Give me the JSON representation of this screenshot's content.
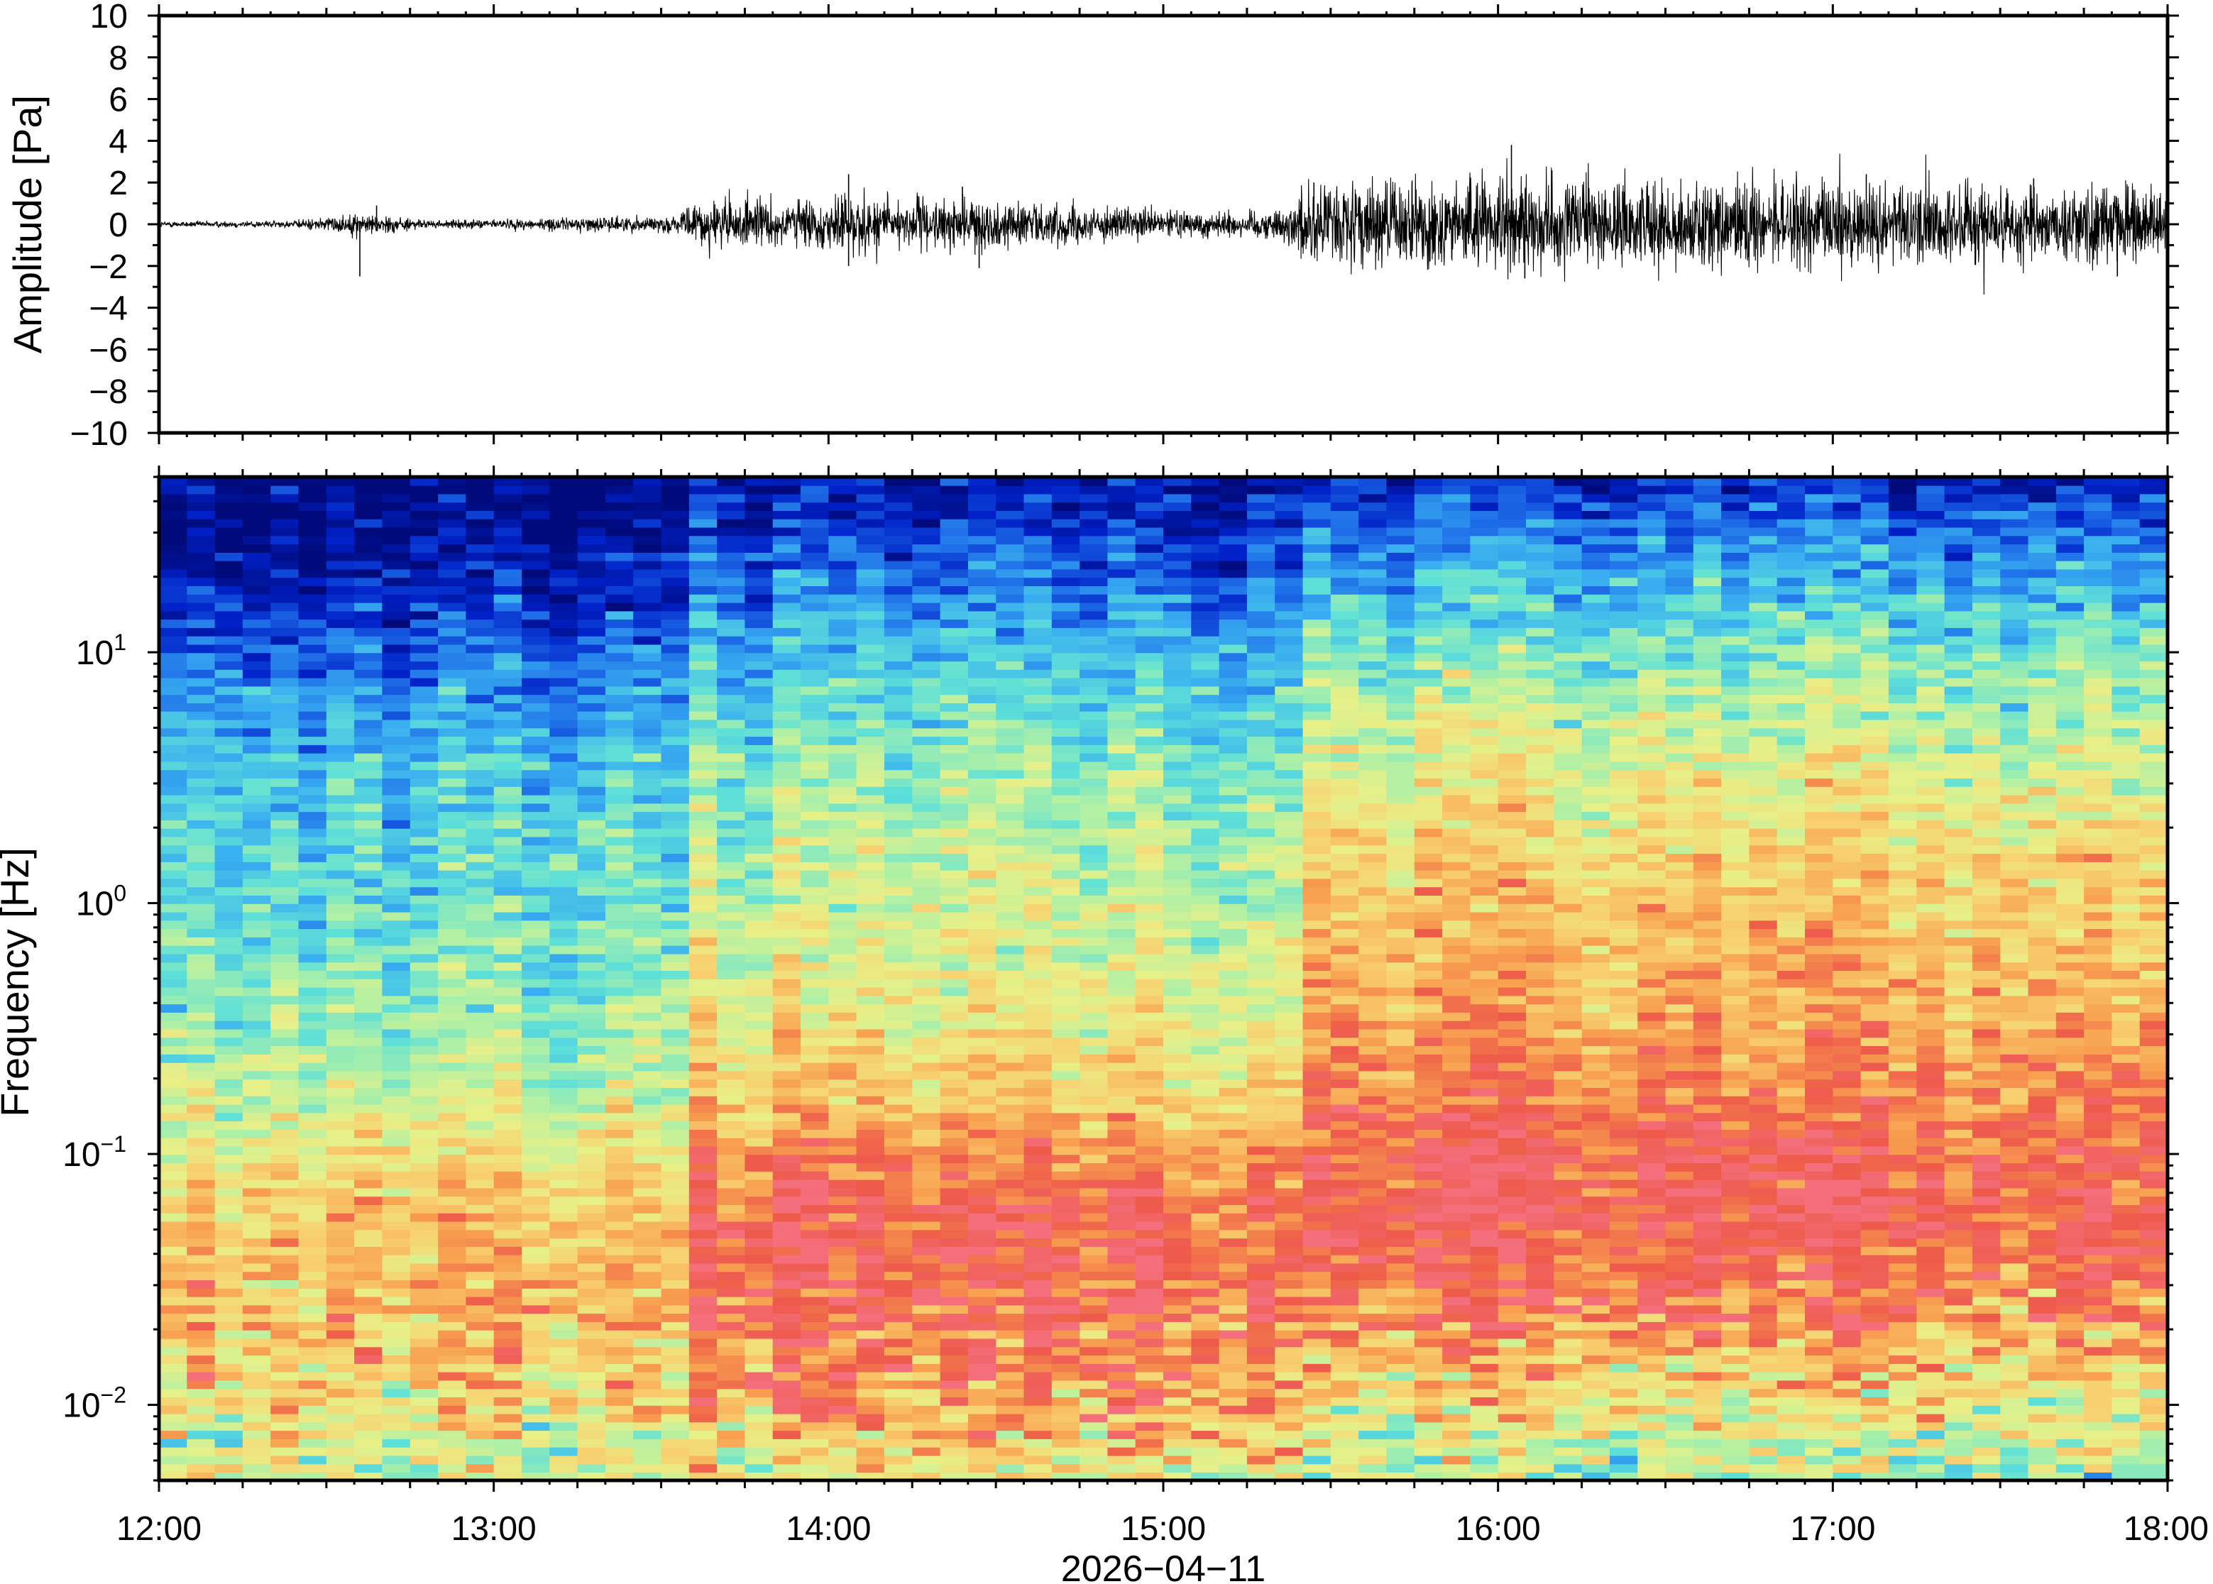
{
  "chart_data": [
    {
      "type": "line",
      "panel": "waveform",
      "ylabel": "Amplitude [Pa]",
      "ylim": [
        -10,
        10
      ],
      "yticks": [
        10,
        8,
        6,
        4,
        2,
        0,
        -2,
        -4,
        -6,
        -8,
        -10
      ],
      "ytick_labels": [
        "10",
        "8",
        "6",
        "4",
        "2",
        "0",
        "−2",
        "−4",
        "−6",
        "−8",
        "−10"
      ],
      "x_range_hours": [
        12.0,
        18.0
      ],
      "trace_color": "#000000",
      "envelope": {
        "x_hours": [
          12.0,
          12.4,
          12.5,
          12.6,
          12.7,
          12.8,
          13.0,
          13.3,
          13.55,
          13.62,
          13.8,
          14.0,
          14.05,
          14.3,
          14.5,
          14.7,
          14.9,
          15.1,
          15.35,
          15.42,
          15.6,
          16.0,
          16.5,
          17.0,
          17.5,
          18.0
        ],
        "half_amplitude_pa": [
          0.12,
          0.15,
          0.3,
          0.45,
          0.35,
          0.15,
          0.2,
          0.3,
          0.35,
          1.0,
          1.0,
          1.0,
          1.3,
          1.0,
          1.0,
          0.8,
          0.6,
          0.55,
          0.6,
          1.6,
          1.8,
          1.9,
          1.8,
          1.8,
          1.7,
          1.6
        ]
      },
      "spikes": [
        {
          "x": 12.6,
          "y": -2.5
        },
        {
          "x": 12.65,
          "y": 0.9
        },
        {
          "x": 14.06,
          "y": 2.4
        },
        {
          "x": 14.06,
          "y": -2.0
        },
        {
          "x": 14.4,
          "y": 1.8
        },
        {
          "x": 14.45,
          "y": -2.1
        },
        {
          "x": 15.45,
          "y": 2.0
        },
        {
          "x": 16.04,
          "y": 3.8
        },
        {
          "x": 16.08,
          "y": -2.6
        },
        {
          "x": 17.1,
          "y": 2.4
        },
        {
          "x": 17.6,
          "y": 2.2
        },
        {
          "x": 17.85,
          "y": -2.5
        }
      ]
    },
    {
      "type": "heatmap",
      "panel": "spectrogram",
      "ylabel": "Frequency [Hz]",
      "yscale": "log",
      "ylim_hz": [
        0.005,
        50
      ],
      "yticks_hz": [
        0.01,
        0.1,
        1,
        10
      ],
      "ytick_labels": [
        {
          "base": "10",
          "exp": "−2"
        },
        {
          "base": "10",
          "exp": "−1"
        },
        {
          "base": "10",
          "exp": "0"
        },
        {
          "base": "10",
          "exp": "1"
        }
      ],
      "xlabel": "2026−04−11",
      "xticks": [
        "12:00",
        "13:00",
        "14:00",
        "15:00",
        "16:00",
        "17:00",
        "18:00"
      ],
      "x_range_hours": [
        12.0,
        18.0
      ],
      "colormap": [
        "#000a7a",
        "#0021c8",
        "#1f6fe8",
        "#3ab0f0",
        "#5ee0d8",
        "#aef0a6",
        "#e8f088",
        "#f8d070",
        "#f8a050",
        "#ee5a4a",
        "#f46e7c"
      ],
      "level_profiles": {
        "log10_freq_nodes": [
          -2.3,
          -2.0,
          -1.6,
          -1.2,
          -1.0,
          -0.8,
          -0.5,
          0.0,
          0.5,
          0.9,
          1.2,
          1.5,
          1.7
        ],
        "quiet_12_00": [
          0.55,
          0.62,
          0.72,
          0.68,
          0.6,
          0.52,
          0.45,
          0.38,
          0.32,
          0.22,
          0.08,
          0.0,
          0.0
        ],
        "moderate_14_00": [
          0.6,
          0.8,
          0.92,
          0.92,
          0.82,
          0.72,
          0.64,
          0.56,
          0.48,
          0.38,
          0.26,
          0.12,
          0.05
        ],
        "active_16_00": [
          0.5,
          0.62,
          0.85,
          0.93,
          0.9,
          0.85,
          0.78,
          0.72,
          0.6,
          0.48,
          0.35,
          0.2,
          0.08
        ]
      }
    }
  ]
}
